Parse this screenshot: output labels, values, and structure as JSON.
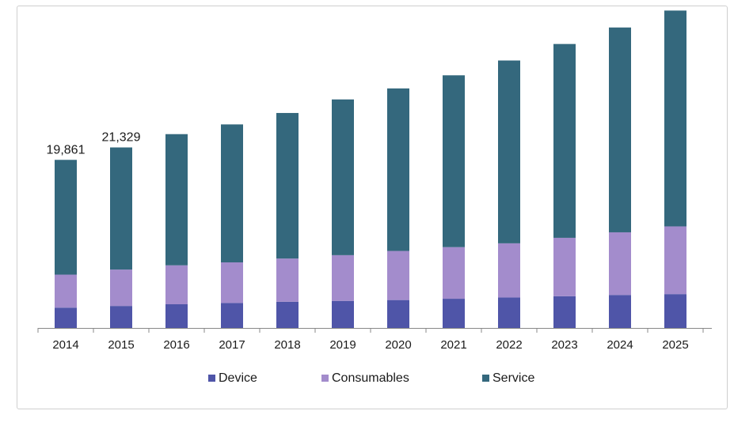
{
  "chart_data": {
    "type": "bar",
    "stacked": true,
    "title": "",
    "xlabel": "",
    "ylabel": "",
    "ylim": [
      0,
      38000
    ],
    "grid": false,
    "legend_position": "bottom",
    "categories": [
      "2014",
      "2015",
      "2016",
      "2017",
      "2018",
      "2019",
      "2020",
      "2021",
      "2022",
      "2023",
      "2024",
      "2025"
    ],
    "series": [
      {
        "name": "Device",
        "color": "#4f55a8",
        "values": [
          2400,
          2600,
          2800,
          2950,
          3100,
          3200,
          3300,
          3450,
          3600,
          3750,
          3900,
          4000
        ]
      },
      {
        "name": "Consumables",
        "color": "#a38ccc",
        "values": [
          3900,
          4300,
          4600,
          4800,
          5100,
          5400,
          5800,
          6100,
          6400,
          6900,
          7400,
          8000
        ]
      },
      {
        "name": "Service",
        "color": "#34687d",
        "values": [
          13561,
          14429,
          15500,
          16300,
          17200,
          18400,
          19200,
          20300,
          21600,
          22900,
          24200,
          25500
        ]
      }
    ],
    "totals_labels": [
      "19,861",
      "21,329",
      "",
      "",
      "",
      "",
      "",
      "",
      "",
      "",
      "",
      ""
    ]
  }
}
